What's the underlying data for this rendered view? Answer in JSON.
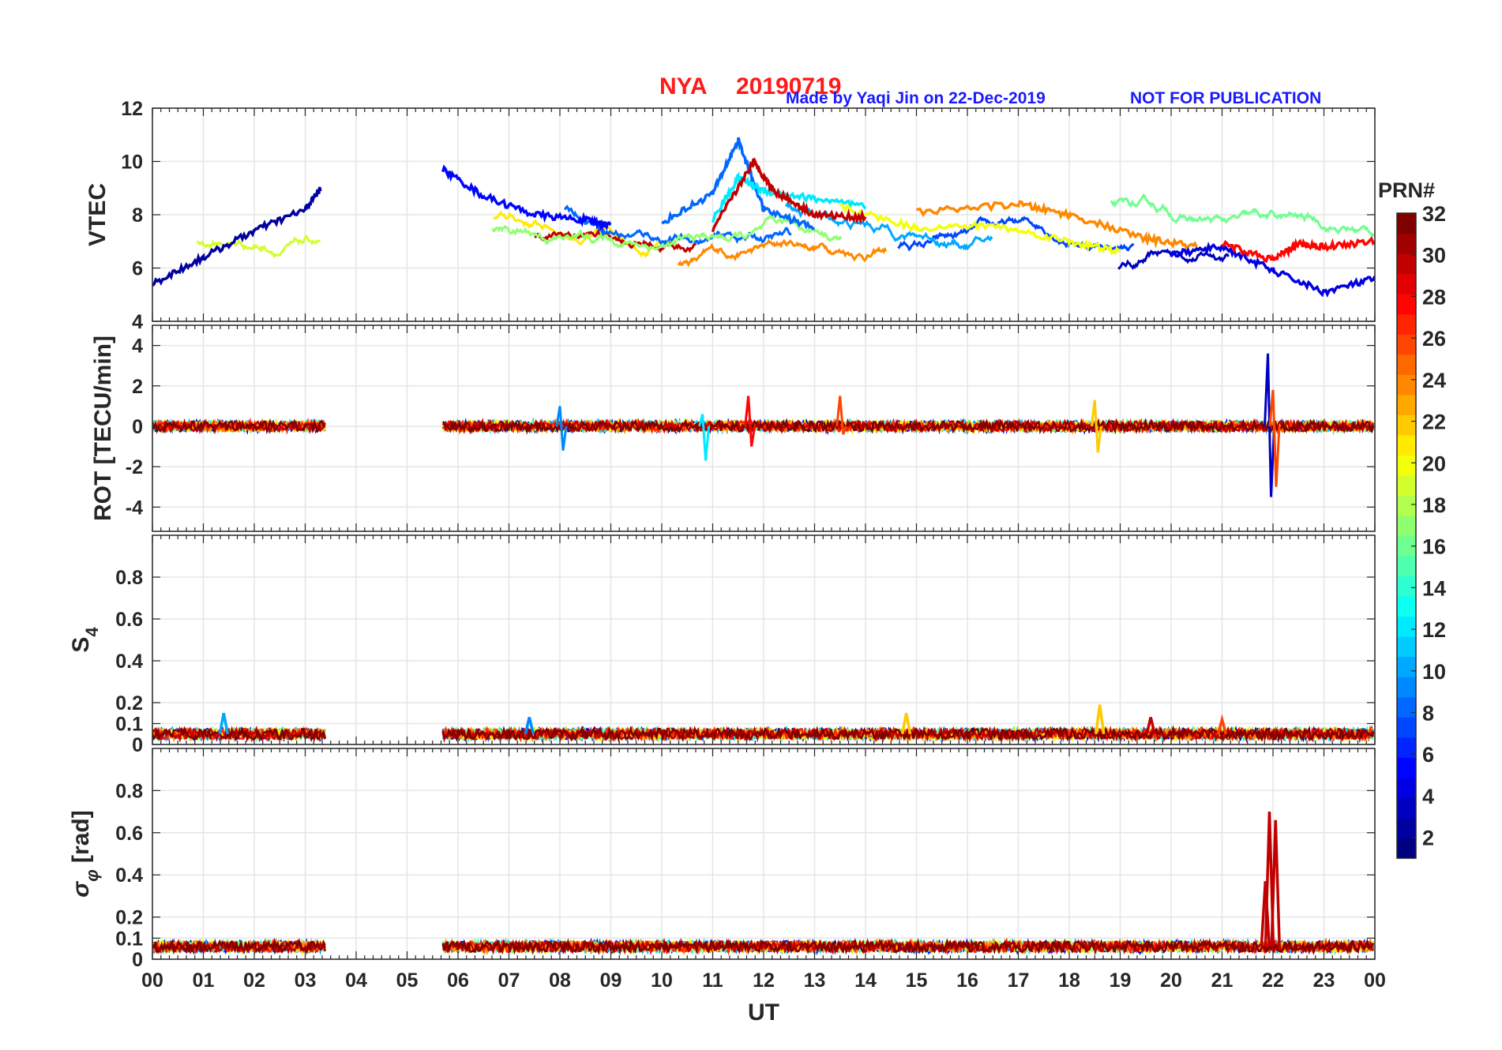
{
  "title": {
    "station": "NYA",
    "date": "20190719",
    "credit": "Made by Yaqi Jin on 22-Dec-2019",
    "notice": "NOT FOR PUBLICATION"
  },
  "colors": {
    "title_red": "#ff1a1a",
    "title_blue": "#1a1aff",
    "grid": "#e6e6e6",
    "axis": "#262626"
  },
  "chart_data": [
    {
      "type": "line",
      "panel": "vtec",
      "ylabel": "VTEC",
      "ylim": [
        4,
        12
      ],
      "yticks": [
        4,
        6,
        8,
        10,
        12
      ],
      "ytick_labels": [
        "4",
        "6",
        "8",
        "10",
        "12"
      ],
      "xlim": [
        0,
        24
      ],
      "data_gap_hours": [
        3.4,
        5.7
      ],
      "series": [
        {
          "prn": 2,
          "x": [
            0.0,
            1.0,
            2.0,
            3.0,
            3.3
          ],
          "y": [
            5.4,
            6.4,
            7.4,
            8.2,
            9.0
          ]
        },
        {
          "prn": 5,
          "x": [
            5.7,
            6.5,
            7.5,
            8.5,
            9.0
          ],
          "y": [
            9.7,
            8.7,
            8.0,
            7.8,
            7.6
          ]
        },
        {
          "prn": 8,
          "x": [
            10.0,
            11.0,
            11.5,
            12.0,
            13.0
          ],
          "y": [
            7.7,
            8.8,
            10.8,
            8.2,
            7.5
          ]
        },
        {
          "prn": 12,
          "x": [
            11.0,
            11.5,
            12.0,
            13.0,
            14.0
          ],
          "y": [
            7.8,
            9.4,
            8.9,
            8.6,
            8.3
          ]
        },
        {
          "prn": 20,
          "x": [
            13.5,
            15.0,
            16.5,
            18.0,
            19.0
          ],
          "y": [
            8.3,
            7.5,
            7.6,
            7.0,
            6.6
          ]
        },
        {
          "prn": 24,
          "x": [
            15.0,
            17.0,
            18.0,
            19.5,
            20.5
          ],
          "y": [
            8.1,
            8.4,
            8.0,
            7.1,
            6.8
          ]
        },
        {
          "prn": 30,
          "x": [
            11.0,
            11.8,
            12.2,
            13.0,
            14.0
          ],
          "y": [
            7.4,
            10.0,
            8.9,
            8.0,
            7.9
          ]
        },
        {
          "prn": 4,
          "x": [
            20.0,
            21.0,
            22.0,
            23.0,
            24.0
          ],
          "y": [
            6.5,
            6.8,
            5.9,
            5.1,
            5.6
          ]
        },
        {
          "prn": 28,
          "x": [
            21.0,
            22.0,
            22.5,
            23.0,
            24.0
          ],
          "y": [
            6.9,
            6.3,
            6.9,
            6.8,
            7.0
          ]
        }
      ]
    },
    {
      "type": "line",
      "panel": "rot",
      "ylabel": "ROT [TECU/min]",
      "ylim": [
        -5.2,
        5.0
      ],
      "yticks": [
        -4,
        -2,
        0,
        2,
        4
      ],
      "ytick_labels": [
        "-4",
        "-2",
        "0",
        "2",
        "4"
      ],
      "xlim": [
        0,
        24
      ],
      "features": [
        {
          "prn": 3,
          "x": 21.9,
          "y_min": -3.5,
          "y_max": 3.6
        },
        {
          "prn": 26,
          "x": 22.0,
          "y_min": -3.0,
          "y_max": 1.8
        },
        {
          "prn": 12,
          "x": 10.8,
          "y_min": -1.7,
          "y_max": 0.6
        },
        {
          "prn": 28,
          "x": 11.7,
          "y_min": -1.0,
          "y_max": 1.5
        },
        {
          "prn": 26,
          "x": 13.5,
          "y_min": -0.4,
          "y_max": 1.5
        },
        {
          "prn": 22,
          "x": 18.5,
          "y_min": -1.3,
          "y_max": 1.3
        },
        {
          "prn": 9,
          "x": 8.0,
          "y_min": -1.2,
          "y_max": 1.0
        }
      ]
    },
    {
      "type": "line",
      "panel": "s4",
      "ylabel": "S4",
      "ylabel_main": "S",
      "ylabel_sub": "4",
      "ylim": [
        0,
        1.0
      ],
      "yticks": [
        0,
        0.1,
        0.2,
        0.4,
        0.6,
        0.8
      ],
      "ytick_labels": [
        "0",
        "0.1",
        "0.2",
        "0.4",
        "0.6",
        "0.8"
      ],
      "xlim": [
        0,
        24
      ],
      "baseline": 0.05,
      "peaks": [
        {
          "prn": 10,
          "x": 1.4,
          "y": 0.15
        },
        {
          "prn": 9,
          "x": 7.4,
          "y": 0.13
        },
        {
          "prn": 22,
          "x": 14.8,
          "y": 0.15
        },
        {
          "prn": 22,
          "x": 18.6,
          "y": 0.19
        },
        {
          "prn": 30,
          "x": 19.6,
          "y": 0.13
        },
        {
          "prn": 26,
          "x": 21.0,
          "y": 0.12
        }
      ]
    },
    {
      "type": "line",
      "panel": "sigma_phi",
      "ylabel": "σφ [rad]",
      "ylabel_main": "σ",
      "ylabel_sub": "φ",
      "ylabel_suffix": " [rad]",
      "ylim": [
        0,
        1.0
      ],
      "yticks": [
        0,
        0.1,
        0.2,
        0.4,
        0.6,
        0.8
      ],
      "ytick_labels": [
        "0",
        "0.1",
        "0.2",
        "0.4",
        "0.6",
        "0.8"
      ],
      "xlim": [
        0,
        24
      ],
      "xlabel": "UT",
      "xtick_labels": [
        "00",
        "01",
        "02",
        "03",
        "04",
        "05",
        "06",
        "07",
        "08",
        "09",
        "10",
        "11",
        "12",
        "13",
        "14",
        "15",
        "16",
        "17",
        "18",
        "19",
        "20",
        "21",
        "22",
        "23",
        "00"
      ],
      "baseline": 0.06,
      "peaks": [
        {
          "prn": 30,
          "x": 21.85,
          "y": 0.37
        },
        {
          "prn": 30,
          "x": 21.93,
          "y": 0.7
        },
        {
          "prn": 30,
          "x": 22.05,
          "y": 0.66
        }
      ]
    }
  ],
  "colorbar": {
    "label": "PRN#",
    "range": [
      1,
      32
    ],
    "ticks": [
      2,
      4,
      6,
      8,
      10,
      12,
      14,
      16,
      18,
      20,
      22,
      24,
      26,
      28,
      30,
      32
    ],
    "tick_labels": [
      "2",
      "4",
      "6",
      "8",
      "10",
      "12",
      "14",
      "16",
      "18",
      "20",
      "22",
      "24",
      "26",
      "28",
      "30",
      "32"
    ],
    "colormap": "jet"
  }
}
